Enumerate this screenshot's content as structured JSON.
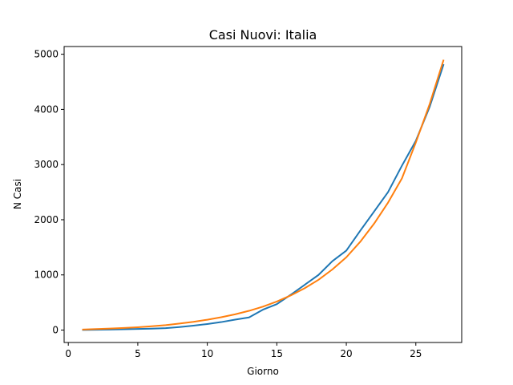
{
  "chart_data": {
    "type": "line",
    "title": "Casi Nuovi: Italia",
    "xlabel": "Giorno",
    "ylabel": "N Casi",
    "xlim": [
      -0.3,
      28.3
    ],
    "ylim": [
      -225,
      5140
    ],
    "xticks": [
      0,
      5,
      10,
      15,
      20,
      25
    ],
    "yticks": [
      0,
      1000,
      2000,
      3000,
      4000,
      5000
    ],
    "grid": false,
    "x": [
      1,
      2,
      3,
      4,
      5,
      6,
      7,
      8,
      9,
      10,
      11,
      12,
      13,
      14,
      15,
      16,
      17,
      18,
      19,
      20,
      21,
      22,
      23,
      24,
      25,
      26,
      27
    ],
    "series": [
      {
        "color": "#1f77b4",
        "values": [
          3,
          5,
          10,
          15,
          20,
          25,
          35,
          55,
          80,
          110,
          145,
          190,
          230,
          370,
          470,
          640,
          820,
          1000,
          1250,
          1440,
          1800,
          2150,
          2500,
          2980,
          3430,
          4050,
          4820
        ]
      },
      {
        "color": "#ff7f0e",
        "values": [
          10,
          18,
          27,
          39,
          52,
          69,
          90,
          118,
          150,
          188,
          233,
          286,
          349,
          425,
          517,
          628,
          758,
          912,
          1100,
          1320,
          1600,
          1930,
          2310,
          2750,
          3400,
          4100,
          4900
        ]
      }
    ]
  }
}
